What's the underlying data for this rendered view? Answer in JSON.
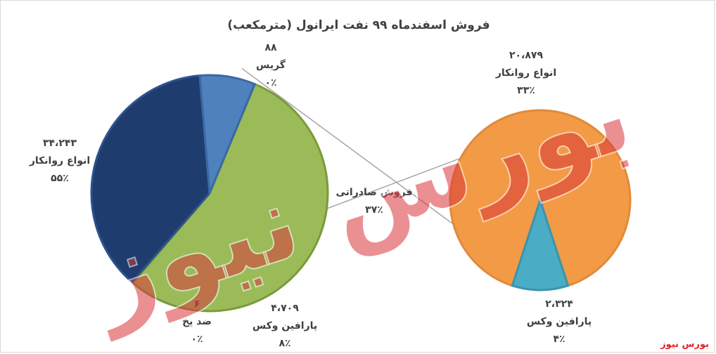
{
  "chart_data": {
    "type": "pie",
    "title": "فروش اسفندماه ۹۹ نفت ایرانول (مترمکعب)",
    "main_pie": {
      "slices": [
        {
          "name": "انواع روانکار",
          "value_label": "۳۴،۲۴۳",
          "value": 34243,
          "percent_label": "۵۵٪",
          "percent": 55,
          "color": "#9bbb59",
          "border": "#7a9a3b"
        },
        {
          "name": "گریس",
          "value_label": "۸۸",
          "value": 88,
          "percent_label": "۰٪",
          "percent": 0,
          "color": "#8cb449",
          "border": "#7a9a3b"
        },
        {
          "name": "فروش صادراتی",
          "value_label": "",
          "value": 23203,
          "percent_label": "۳۷٪",
          "percent": 37,
          "color": "#1f3c6e",
          "border": "#2f528f"
        },
        {
          "name": "پارافین وکس",
          "value_label": "۴،۷۰۹",
          "value": 4709,
          "percent_label": "۸٪",
          "percent": 8,
          "color": "#4f81bd",
          "border": "#3a6aa3"
        },
        {
          "name": "ضد یخ",
          "value_label": "۶",
          "value": 6,
          "percent_label": "۰٪",
          "percent": 0,
          "color": "#4f81bd",
          "border": "#3a6aa3"
        }
      ]
    },
    "secondary_pie": {
      "slices": [
        {
          "name": "انواع روانکار",
          "value_label": "۲۰،۸۷۹",
          "value": 20879,
          "percent_label": "۳۳٪",
          "percent": 33,
          "color": "#f39a46",
          "border": "#e08a3a"
        },
        {
          "name": "پارافین وکس",
          "value_label": "۲،۳۲۴",
          "value": 2324,
          "percent_label": "۴٪",
          "percent": 4,
          "color": "#4bacc6",
          "border": "#3a94ac"
        }
      ]
    },
    "legend": "none"
  },
  "watermark": {
    "text": "بورس نیوز",
    "color": "#d9373b"
  },
  "source": {
    "text": "بورس نیوز",
    "color": "#e0242a"
  }
}
